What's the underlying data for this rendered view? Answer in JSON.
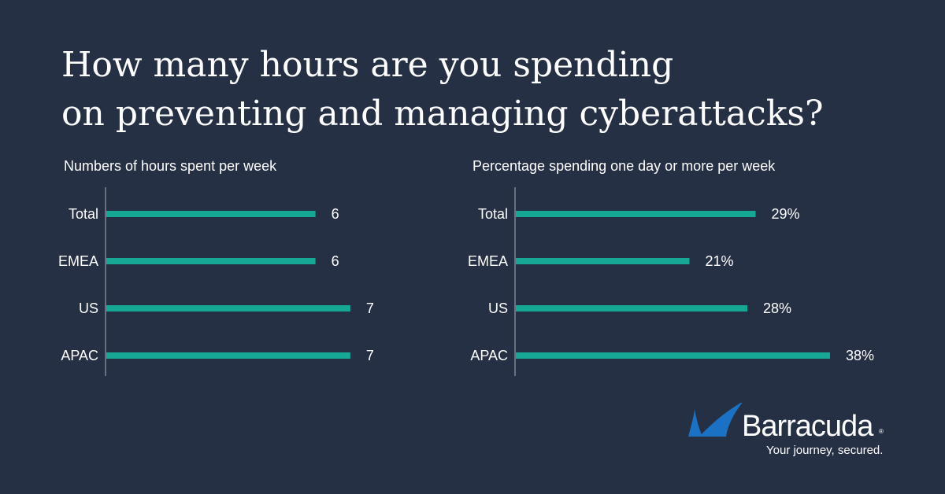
{
  "title": {
    "line1": "How many hours are you spending",
    "line2": "on preventing and managing cyberattacks?"
  },
  "chart_data": [
    {
      "type": "bar",
      "orientation": "horizontal",
      "title": "Numbers of hours spent per week",
      "categories": [
        "Total",
        "EMEA",
        "US",
        "APAC"
      ],
      "values": [
        6,
        6,
        7,
        7
      ],
      "value_labels": [
        "6",
        "6",
        "7",
        "7"
      ],
      "xlim": [
        0,
        7.5
      ],
      "bar_color": "#16a795",
      "grid": false
    },
    {
      "type": "bar",
      "orientation": "horizontal",
      "title": "Percentage spending one day or more per week",
      "categories": [
        "Total",
        "EMEA",
        "US",
        "APAC"
      ],
      "values": [
        29,
        21,
        28,
        38
      ],
      "value_labels": [
        "29%",
        "21%",
        "28%",
        "38%"
      ],
      "xlim": [
        0,
        40
      ],
      "bar_color": "#16a795",
      "grid": false
    }
  ],
  "logo": {
    "name": "Barracuda",
    "registered": "®",
    "tagline": "Your journey, secured.",
    "icon": "barracuda-fin-icon",
    "icon_color": "#1b72c4"
  },
  "colors": {
    "background": "#263044",
    "bar": "#16a795",
    "axis": "#7d8494",
    "text": "#ffffff"
  }
}
